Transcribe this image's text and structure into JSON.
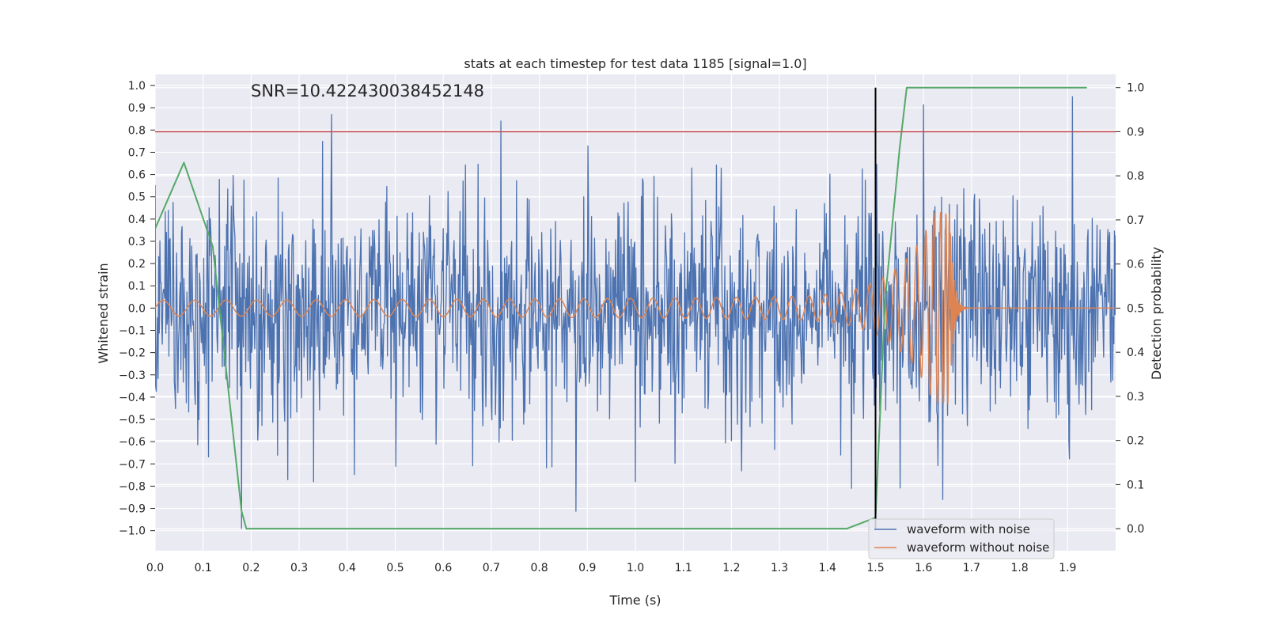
{
  "chart_data": {
    "type": "line",
    "title": "stats at each timestep for test data 1185 [signal=1.0]",
    "xlabel": "Time (s)",
    "ylabel": "Whitened strain",
    "y2label": "Detection probability",
    "annotation": "SNR=10.422430038452148",
    "xlim": [
      0.0,
      2.0
    ],
    "ylim": [
      -1.09,
      1.05
    ],
    "y2lim": [
      -0.05,
      1.03
    ],
    "x_ticks": [
      0.0,
      0.1,
      0.2,
      0.3,
      0.4,
      0.5,
      0.6,
      0.7,
      0.8,
      0.9,
      1.0,
      1.1,
      1.2,
      1.3,
      1.4,
      1.5,
      1.6,
      1.7,
      1.8,
      1.9
    ],
    "x_tick_labels": [
      "0.0",
      "0.1",
      "0.2",
      "0.3",
      "0.4",
      "0.5",
      "0.6",
      "0.7",
      "0.8",
      "0.9",
      "1.0",
      "1.1",
      "1.2",
      "1.3",
      "1.4",
      "1.5",
      "1.6",
      "1.7",
      "1.8",
      "1.9"
    ],
    "y_ticks": [
      1.0,
      0.9,
      0.8,
      0.7,
      0.6,
      0.5,
      0.4,
      0.3,
      0.2,
      0.1,
      0.0,
      -0.1,
      -0.2,
      -0.3,
      -0.4,
      -0.5,
      -0.6,
      -0.7,
      -0.8,
      -0.9,
      -1.0
    ],
    "y_tick_labels": [
      "1.0",
      "0.9",
      "0.8",
      "0.7",
      "0.6",
      "0.5",
      "0.4",
      "0.3",
      "0.2",
      "0.1",
      "0.0",
      "−0.1",
      "−0.2",
      "−0.3",
      "−0.4",
      "−0.5",
      "−0.6",
      "−0.7",
      "−0.8",
      "−0.9",
      "−1.0"
    ],
    "y2_ticks": [
      1.0,
      0.9,
      0.8,
      0.7,
      0.6,
      0.5,
      0.4,
      0.3,
      0.2,
      0.1,
      0.0
    ],
    "y2_tick_labels": [
      "1.0",
      "0.9",
      "0.8",
      "0.7",
      "0.6",
      "0.5",
      "0.4",
      "0.3",
      "0.2",
      "0.1",
      "0.0"
    ],
    "grid": true,
    "legend_position": "lower-right",
    "series": [
      {
        "name": "waveform with noise",
        "axis": "left",
        "color": "#4c72b0",
        "noise_std": 0.26,
        "samples": 1600,
        "spikes": [
          [
            0.368,
            0.87
          ],
          [
            0.72,
            0.84
          ],
          [
            1.91,
            0.95
          ],
          [
            0.18,
            -0.99
          ],
          [
            1.45,
            -0.81
          ],
          [
            1.64,
            -0.86
          ],
          [
            0.33,
            -0.78
          ],
          [
            1.0,
            -0.78
          ]
        ]
      },
      {
        "name": "waveform without noise",
        "axis": "left",
        "color": "#dd8452",
        "samples": 3200,
        "chirp_end_time": 1.655,
        "chirp_start_freq": 15,
        "start_amplitude": 0.035,
        "peak_amplitude": 0.43,
        "ringdown_end": 1.7
      },
      {
        "name": "Detection probability",
        "axis": "right",
        "color": "#55a868",
        "x": [
          0.0,
          0.06,
          0.12,
          0.18,
          0.19,
          0.25,
          1.44,
          1.5,
          1.52,
          1.55,
          1.565,
          1.94
        ],
        "values": [
          0.68,
          0.83,
          0.64,
          0.04,
          0.0,
          0.0,
          0.0,
          0.025,
          0.52,
          0.86,
          1.0,
          1.0
        ]
      }
    ],
    "threshold_line": {
      "axis": "right",
      "value": 0.9,
      "color": "#c44e52"
    },
    "event_line": {
      "x": 1.5,
      "color": "#000000"
    },
    "legend": [
      "waveform with noise",
      "waveform without noise"
    ]
  }
}
